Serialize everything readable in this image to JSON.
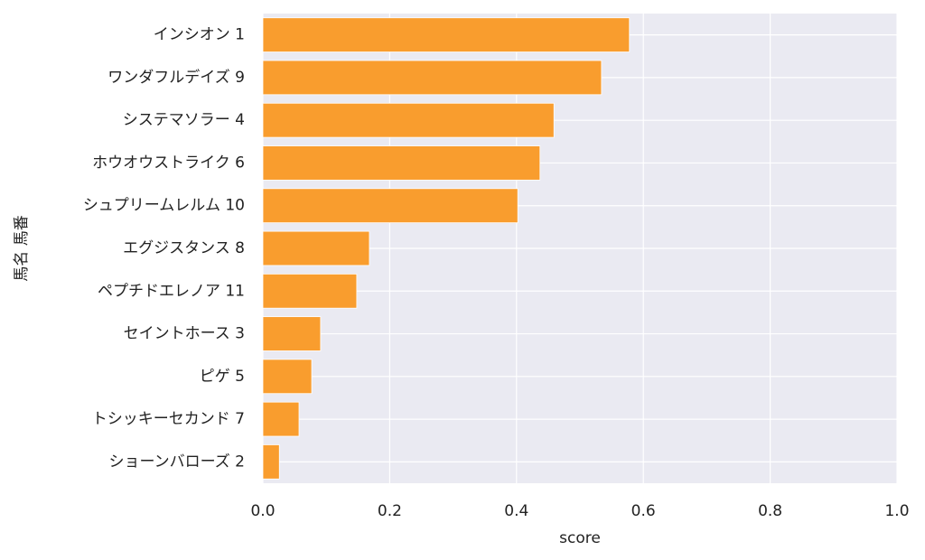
{
  "chart_data": {
    "type": "barh",
    "xlabel": "score",
    "ylabel": "馬名 馬番",
    "categories": [
      "インシオン 1",
      "ワンダフルデイズ 9",
      "システマソラー 4",
      "ホウオウストライク 6",
      "シュプリームレルム 10",
      "エグジスタンス 8",
      "ペプチドエレノア 11",
      "セイントホース 3",
      "ピゲ 5",
      "トシッキーセカンド 7",
      "ショーンバローズ 2"
    ],
    "values": [
      0.578,
      0.534,
      0.459,
      0.437,
      0.402,
      0.168,
      0.148,
      0.091,
      0.077,
      0.057,
      0.026
    ],
    "color": "#f99d2e",
    "xlim": [
      0,
      1
    ],
    "xticks": [
      {
        "value": 0,
        "label": "0.0"
      },
      0.2,
      0.4,
      0.6,
      0.8,
      {
        "value": 1,
        "label": "1.0"
      }
    ],
    "grid": true
  }
}
